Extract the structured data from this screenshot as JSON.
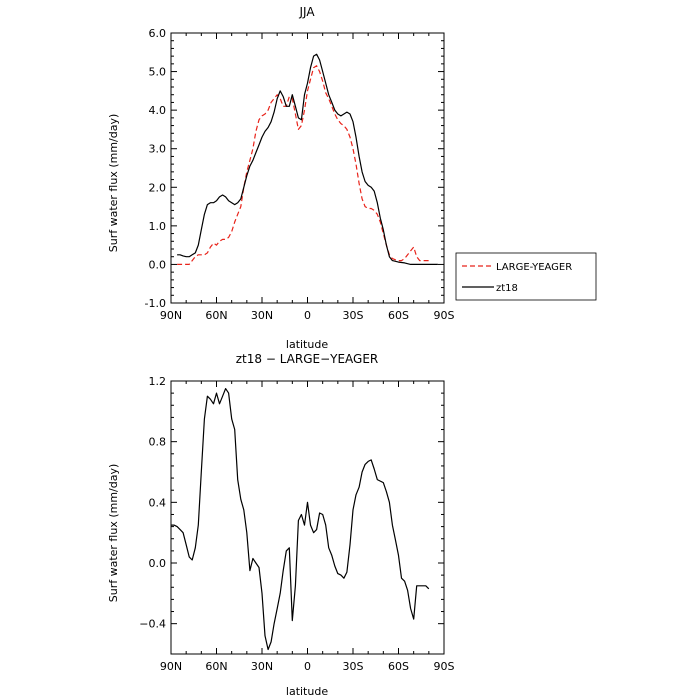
{
  "chart_data": [
    {
      "type": "line",
      "title": "JJA",
      "xlabel": "latitude",
      "ylabel": "Surf water flux (mm/day)",
      "xlim": [
        90,
        -90
      ],
      "ylim": [
        -1.0,
        6.0
      ],
      "xtick_values": [
        90,
        60,
        30,
        0,
        -30,
        -60,
        -90
      ],
      "xtick_labels": [
        "90N",
        "60N",
        "30N",
        "0",
        "30S",
        "60S",
        "90S"
      ],
      "ytick_values": [
        -1.0,
        0.0,
        1.0,
        2.0,
        3.0,
        4.0,
        5.0,
        6.0
      ],
      "ytick_labels": [
        "-1.0",
        "0.0",
        "1.0",
        "2.0",
        "3.0",
        "4.0",
        "5.0",
        "6.0"
      ],
      "legend_position": "outside-right",
      "series": [
        {
          "name": "LARGE-YEAGER",
          "color": "#e8231a",
          "dash": "dashed",
          "x": [
            86,
            82,
            78,
            76,
            74,
            72,
            70,
            68,
            66,
            64,
            62,
            60,
            58,
            56,
            54,
            52,
            50,
            48,
            46,
            44,
            42,
            40,
            38,
            36,
            34,
            32,
            30,
            28,
            26,
            24,
            22,
            20,
            18,
            16,
            14,
            12,
            10,
            8,
            6,
            4,
            2,
            0,
            -2,
            -4,
            -6,
            -8,
            -10,
            -12,
            -14,
            -16,
            -18,
            -20,
            -22,
            -24,
            -26,
            -28,
            -30,
            -32,
            -34,
            -36,
            -38,
            -40,
            -42,
            -44,
            -46,
            -48,
            -50,
            -52,
            -54,
            -56,
            -58,
            -60,
            -62,
            -64,
            -66,
            -68,
            -70,
            -72,
            -74,
            -76,
            -78,
            -80
          ],
          "y": [
            0.0,
            0.0,
            0.0,
            0.1,
            0.2,
            0.25,
            0.25,
            0.25,
            0.3,
            0.45,
            0.55,
            0.5,
            0.6,
            0.65,
            0.65,
            0.7,
            0.85,
            1.1,
            1.3,
            1.5,
            2.0,
            2.4,
            2.7,
            3.0,
            3.45,
            3.75,
            3.85,
            3.9,
            4.0,
            4.2,
            4.3,
            4.4,
            4.3,
            4.1,
            4.1,
            4.35,
            4.3,
            3.9,
            3.5,
            3.6,
            4.0,
            4.5,
            4.8,
            5.1,
            5.15,
            5.0,
            4.75,
            4.45,
            4.3,
            4.1,
            3.9,
            3.75,
            3.65,
            3.6,
            3.5,
            3.3,
            3.0,
            2.6,
            2.1,
            1.7,
            1.5,
            1.45,
            1.45,
            1.4,
            1.3,
            1.1,
            0.8,
            0.5,
            0.25,
            0.15,
            0.12,
            0.1,
            0.1,
            0.15,
            0.25,
            0.35,
            0.45,
            0.2,
            0.1,
            0.1,
            0.1,
            0.1
          ]
        },
        {
          "name": "zt18",
          "color": "#000000",
          "dash": "solid",
          "x": [
            86,
            84,
            82,
            80,
            78,
            76,
            74,
            72,
            70,
            68,
            66,
            64,
            62,
            60,
            58,
            56,
            54,
            52,
            50,
            48,
            46,
            44,
            42,
            40,
            38,
            36,
            34,
            32,
            30,
            28,
            26,
            24,
            22,
            20,
            18,
            16,
            14,
            12,
            10,
            8,
            6,
            4,
            2,
            0,
            -2,
            -4,
            -6,
            -8,
            -10,
            -12,
            -14,
            -16,
            -18,
            -20,
            -22,
            -24,
            -26,
            -28,
            -30,
            -32,
            -34,
            -36,
            -38,
            -40,
            -42,
            -44,
            -46,
            -48,
            -50,
            -52,
            -54,
            -56,
            -58,
            -60,
            -62,
            -64,
            -66,
            -68,
            -70,
            -72,
            -74,
            -76,
            -78,
            -80,
            -82,
            -84,
            -86
          ],
          "y": [
            0.25,
            0.25,
            0.22,
            0.2,
            0.2,
            0.25,
            0.3,
            0.5,
            0.9,
            1.3,
            1.55,
            1.6,
            1.6,
            1.65,
            1.75,
            1.8,
            1.75,
            1.65,
            1.6,
            1.55,
            1.6,
            1.7,
            2.0,
            2.3,
            2.55,
            2.7,
            2.9,
            3.1,
            3.3,
            3.45,
            3.55,
            3.7,
            3.95,
            4.3,
            4.5,
            4.35,
            4.1,
            4.1,
            4.4,
            4.1,
            3.8,
            3.75,
            4.4,
            4.7,
            5.1,
            5.4,
            5.45,
            5.3,
            5.0,
            4.7,
            4.4,
            4.2,
            4.0,
            3.9,
            3.85,
            3.9,
            3.95,
            3.9,
            3.7,
            3.3,
            2.8,
            2.4,
            2.15,
            2.05,
            2.0,
            1.9,
            1.6,
            1.2,
            0.9,
            0.5,
            0.2,
            0.1,
            0.08,
            0.06,
            0.05,
            0.04,
            0.02,
            0.0,
            0.0,
            0.0,
            0.0,
            0.0,
            0.0,
            0.0,
            0.0,
            0.0,
            0.0
          ]
        }
      ]
    },
    {
      "type": "line",
      "title": "zt18 − LARGE−YEAGER",
      "xlabel": "latitude",
      "ylabel": "Surf water flux (mm/day)",
      "xlim": [
        90,
        -90
      ],
      "ylim": [
        -0.6,
        1.2
      ],
      "xtick_values": [
        90,
        60,
        30,
        0,
        -30,
        -60,
        -90
      ],
      "xtick_labels": [
        "90N",
        "60N",
        "30N",
        "0",
        "30S",
        "60S",
        "90S"
      ],
      "ytick_values": [
        -0.4,
        0.0,
        0.4,
        0.8,
        1.2
      ],
      "ytick_labels": [
        "−0.4",
        "0.0",
        "0.4",
        "0.8",
        "1.2"
      ],
      "series": [
        {
          "color": "#000000",
          "dash": "solid",
          "x": [
            90,
            88,
            86,
            84,
            82,
            80,
            78,
            76,
            74,
            72,
            70,
            68,
            66,
            64,
            62,
            60,
            58,
            56,
            54,
            52,
            50,
            48,
            46,
            44,
            42,
            40,
            38,
            36,
            34,
            32,
            30,
            28,
            26,
            24,
            22,
            20,
            18,
            16,
            14,
            12,
            10,
            8,
            6,
            4,
            2,
            0,
            -2,
            -4,
            -6,
            -8,
            -10,
            -12,
            -14,
            -16,
            -18,
            -20,
            -22,
            -24,
            -26,
            -28,
            -30,
            -32,
            -34,
            -36,
            -38,
            -40,
            -42,
            -44,
            -46,
            -48,
            -50,
            -52,
            -54,
            -56,
            -58,
            -60,
            -62,
            -64,
            -66,
            -68,
            -70,
            -72,
            -74,
            -76,
            -78,
            -80
          ],
          "y": [
            0.25,
            0.25,
            0.24,
            0.22,
            0.2,
            0.12,
            0.04,
            0.02,
            0.1,
            0.25,
            0.6,
            0.95,
            1.1,
            1.08,
            1.05,
            1.12,
            1.05,
            1.1,
            1.15,
            1.12,
            0.95,
            0.88,
            0.55,
            0.42,
            0.35,
            0.2,
            -0.05,
            0.03,
            0.0,
            -0.03,
            -0.2,
            -0.48,
            -0.57,
            -0.52,
            -0.4,
            -0.3,
            -0.2,
            -0.05,
            0.08,
            0.1,
            -0.38,
            -0.15,
            0.28,
            0.32,
            0.25,
            0.4,
            0.25,
            0.2,
            0.22,
            0.33,
            0.32,
            0.25,
            0.1,
            0.05,
            -0.02,
            -0.07,
            -0.08,
            -0.1,
            -0.06,
            0.12,
            0.35,
            0.45,
            0.5,
            0.6,
            0.65,
            0.67,
            0.68,
            0.62,
            0.55,
            0.54,
            0.53,
            0.47,
            0.4,
            0.25,
            0.15,
            0.05,
            -0.1,
            -0.12,
            -0.18,
            -0.3,
            -0.37,
            -0.15,
            -0.15,
            -0.15,
            -0.15,
            -0.17
          ]
        }
      ]
    }
  ]
}
